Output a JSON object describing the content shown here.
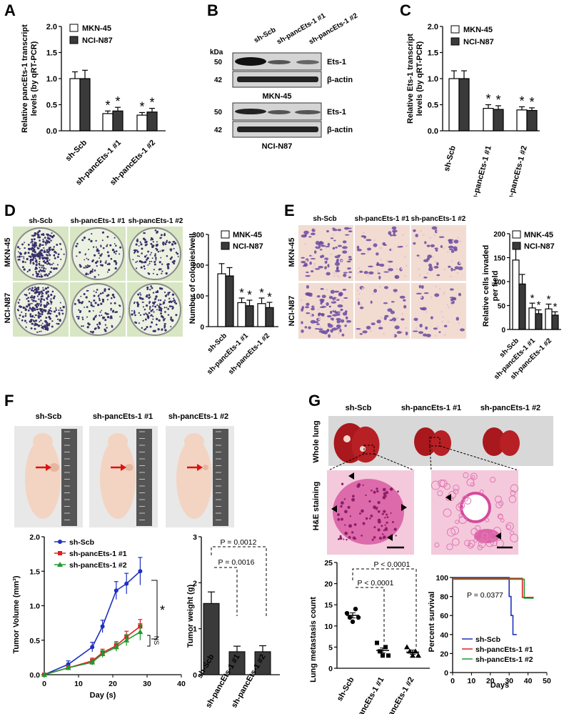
{
  "panels": {
    "A": {
      "letter": "A",
      "ylabel_line1": "Relative pancEts-1 transcript",
      "ylabel_line2": "levels (by qRT-PCR)",
      "legend": [
        "MKN-45",
        "NCI-N87"
      ],
      "categories": [
        "sh-Scb",
        "sh-pancEts-1 #1",
        "sh-pancEts-1 #2"
      ],
      "yticks": [
        "0.0",
        "0.5",
        "1.0",
        "1.5",
        "2.0"
      ],
      "star": "*"
    },
    "B": {
      "letter": "B",
      "kda": "kDa",
      "lanes": [
        "sh-Scb",
        "sh-pancEts-1 #1",
        "sh-pancEts-1 #2"
      ],
      "blot1_title": "MKN-45",
      "blot2_title": "NCI-N87",
      "markers": [
        "50",
        "42",
        "50",
        "42"
      ],
      "proteins": [
        "Ets-1",
        "β-actin",
        "Ets-1",
        "β-actin"
      ]
    },
    "C": {
      "letter": "C",
      "ylabel_line1": "Relative Ets-1 transcript",
      "ylabel_line2": "levels (by qRT-PCR)",
      "legend": [
        "MKN-45",
        "NCI-N87"
      ],
      "categories": [
        "sh-Scb",
        "sh-pancEts-1 #1",
        "sh-pancEts-1 #2"
      ],
      "yticks": [
        "0.0",
        "0.5",
        "1.0",
        "1.5",
        "2.0"
      ]
    },
    "D": {
      "letter": "D",
      "columns": [
        "sh-Scb",
        "sh-pancEts-1 #1",
        "sh-pancEts-1 #2"
      ],
      "rows": [
        "MKN-45",
        "NCI-N87"
      ],
      "legend": [
        "MNK-45",
        "NCI-N87"
      ],
      "ylabel": "Number of colonies/well",
      "categories": [
        "sh-Scb",
        "sh-pancEts-1 #1",
        "sh-pancEts-1 #2"
      ],
      "yticks": [
        "0",
        "100",
        "200",
        "300"
      ]
    },
    "E": {
      "letter": "E",
      "columns": [
        "sh-Scb",
        "sh-pancEts-1 #1",
        "sh-pancEts-1 #2"
      ],
      "rows": [
        "MKN-45",
        "NCI-N87"
      ],
      "legend": [
        "MNK-45",
        "NCI-N87"
      ],
      "ylabel_line1": "Relative cells invaded",
      "ylabel_line2": "per field",
      "categories": [
        "sh-Scb",
        "sh-pancEts-1 #1",
        "sh-pancEts-1 #2"
      ],
      "yticks": [
        "0",
        "50",
        "100",
        "150",
        "200"
      ]
    },
    "F": {
      "letter": "F",
      "photo_labels": [
        "sh-Scb",
        "sh-pancEts-1 #1",
        "sh-pancEts-1 #2"
      ],
      "line_ylabel": "Tumor Volume (mm³)",
      "line_xlabel": "Day (s)",
      "line_legend": [
        "sh-Scb",
        "sh-pancEts-1 #1",
        "sh-pancEts-1 #2"
      ],
      "line_yticks": [
        "0.0",
        "0.5",
        "1.0",
        "1.5",
        "2.0"
      ],
      "line_xticks": [
        "0",
        "10",
        "20",
        "30",
        "40"
      ],
      "ns": "NS",
      "bar_ylabel": "Tumor weight (g)",
      "bar_yticks": [
        "0",
        "1",
        "2",
        "3"
      ],
      "bar_categories": [
        "sh-Scb",
        "sh-pancEts-1 #1",
        "sh-pancEts-1 #2"
      ],
      "p1": "P = 0.0012",
      "p2": "P = 0.0016"
    },
    "G": {
      "letter": "G",
      "photo_labels": [
        "sh-Scb",
        "sh-pancEts-1 #1",
        "sh-pancEts-1 #2"
      ],
      "row_label1": "Whole lung",
      "row_label2": "H&E staining",
      "scatter_ylabel": "Lung metastasis count",
      "scatter_yticks": [
        "0",
        "5",
        "10",
        "15",
        "20",
        "25"
      ],
      "scatter_categories": [
        "sh-Scb",
        "sh-pancEts-1 #1",
        "sh-pancEts-1 #2"
      ],
      "p1": "P < 0.0001",
      "p2": "P < 0.0001",
      "surv_ylabel": "Percent survival",
      "surv_xlabel": "Days",
      "surv_yticks": [
        "0",
        "20",
        "40",
        "60",
        "80",
        "100"
      ],
      "surv_xticks": [
        "0",
        "10",
        "20",
        "30",
        "40",
        "50"
      ],
      "surv_p": "P = 0.0377",
      "surv_legend": [
        "sh-Scb",
        "sh-pancEts-1 #1",
        "sh-pancEts-1 #2"
      ]
    }
  },
  "colors": {
    "white_bar": "#ffffff",
    "dark_bar": "#3a3a3a",
    "blue": "#1f2fbf",
    "red": "#e02020",
    "green": "#1f9a2f",
    "colony_bg": "#d8e6c4",
    "transwell_bg": "#f2dcd2",
    "he_bg": "#f4c9dc"
  },
  "chart_data": [
    {
      "type": "bar",
      "title": "A",
      "ylim": [
        0,
        2.0
      ],
      "categories": [
        "sh-Scb",
        "sh-pancEts-1 #1",
        "sh-pancEts-1 #2"
      ],
      "series": [
        {
          "name": "MKN-45",
          "values": [
            1.0,
            0.33,
            0.3
          ],
          "err": [
            0.13,
            0.05,
            0.05
          ]
        },
        {
          "name": "NCI-N87",
          "values": [
            1.0,
            0.38,
            0.36
          ],
          "err": [
            0.16,
            0.07,
            0.07
          ]
        }
      ]
    },
    {
      "type": "bar",
      "title": "C",
      "ylim": [
        0,
        2.0
      ],
      "categories": [
        "sh-Scb",
        "sh-pancEts-1 #1",
        "sh-pancEts-1 #2"
      ],
      "series": [
        {
          "name": "MKN-45",
          "values": [
            1.0,
            0.43,
            0.4
          ],
          "err": [
            0.15,
            0.07,
            0.06
          ]
        },
        {
          "name": "NCI-N87",
          "values": [
            1.0,
            0.41,
            0.39
          ],
          "err": [
            0.15,
            0.07,
            0.05
          ]
        }
      ]
    },
    {
      "type": "bar",
      "title": "D",
      "ylim": [
        0,
        300
      ],
      "categories": [
        "sh-Scb",
        "sh-pancEts-1 #1",
        "sh-pancEts-1 #2"
      ],
      "series": [
        {
          "name": "MNK-45",
          "values": [
            172,
            78,
            75
          ],
          "err": [
            33,
            15,
            18
          ]
        },
        {
          "name": "NCI-N87",
          "values": [
            165,
            68,
            62
          ],
          "err": [
            27,
            18,
            17
          ]
        }
      ]
    },
    {
      "type": "bar",
      "title": "E",
      "ylim": [
        0,
        200
      ],
      "categories": [
        "sh-Scb",
        "sh-pancEts-1 #1",
        "sh-pancEts-1 #2"
      ],
      "series": [
        {
          "name": "MNK-45",
          "values": [
            145,
            45,
            43
          ],
          "err": [
            23,
            10,
            10
          ]
        },
        {
          "name": "NCI-N87",
          "values": [
            95,
            33,
            30
          ],
          "err": [
            20,
            8,
            7
          ]
        }
      ]
    },
    {
      "type": "line",
      "title": "F tumor volume",
      "xlim": [
        0,
        40
      ],
      "ylim": [
        0,
        2.0
      ],
      "x": [
        0,
        7,
        14,
        17,
        21,
        24,
        28
      ],
      "series": [
        {
          "name": "sh-Scb",
          "values": [
            0.0,
            0.15,
            0.4,
            0.7,
            1.22,
            1.32,
            1.5
          ],
          "err": [
            0,
            0.05,
            0.07,
            0.09,
            0.13,
            0.15,
            0.2
          ]
        },
        {
          "name": "sh-pancEts-1 #1",
          "values": [
            0.0,
            0.1,
            0.2,
            0.32,
            0.42,
            0.55,
            0.7
          ],
          "err": [
            0,
            0.03,
            0.04,
            0.05,
            0.06,
            0.08,
            0.1
          ]
        },
        {
          "name": "sh-pancEts-1 #2",
          "values": [
            0.0,
            0.1,
            0.18,
            0.3,
            0.4,
            0.5,
            0.62
          ],
          "err": [
            0,
            0.03,
            0.04,
            0.05,
            0.06,
            0.08,
            0.12
          ]
        }
      ]
    },
    {
      "type": "bar",
      "title": "F tumor weight",
      "ylim": [
        0,
        3
      ],
      "categories": [
        "sh-Scb",
        "sh-pancEts-1 #1",
        "sh-pancEts-1 #2"
      ],
      "values": [
        1.55,
        0.5,
        0.5
      ],
      "err": [
        0.25,
        0.12,
        0.13
      ]
    },
    {
      "type": "scatter",
      "title": "G metastasis",
      "ylim": [
        0,
        25
      ],
      "categories": [
        "sh-Scb",
        "sh-pancEts-1 #1",
        "sh-pancEts-1 #2"
      ],
      "points": [
        [
          13,
          12,
          11,
          14,
          12
        ],
        [
          6,
          4,
          3,
          5,
          3
        ],
        [
          5,
          4,
          3,
          4,
          3
        ]
      ],
      "means": [
        12.5,
        4.2,
        3.8
      ],
      "sem": [
        0.6,
        0.6,
        0.5
      ]
    },
    {
      "type": "line",
      "title": "G survival",
      "xlim": [
        0,
        50
      ],
      "ylim": [
        0,
        100
      ],
      "series": [
        {
          "name": "sh-Scb",
          "x": [
            0,
            30,
            30,
            31,
            31,
            32,
            32,
            34
          ],
          "values": [
            100,
            100,
            80,
            80,
            60,
            60,
            40,
            40
          ]
        },
        {
          "name": "sh-pancEts-1 #1",
          "x": [
            0,
            37,
            37,
            43
          ],
          "values": [
            100,
            100,
            80,
            80
          ]
        },
        {
          "name": "sh-pancEts-1 #2",
          "x": [
            0,
            38,
            38,
            43
          ],
          "values": [
            100,
            100,
            80,
            80
          ]
        }
      ]
    }
  ]
}
